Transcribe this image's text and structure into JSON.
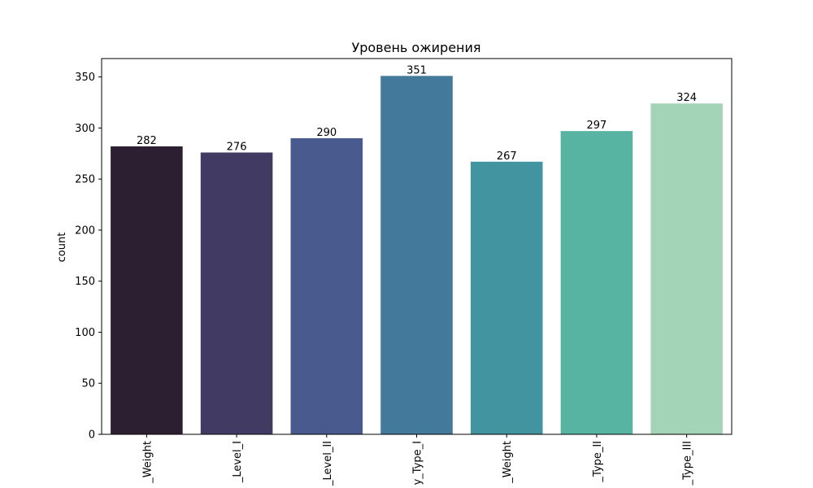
{
  "chart_data": {
    "type": "bar",
    "title": "Уровень ожирения",
    "xlabel": "",
    "ylabel": "count",
    "categories": [
      "_Weight",
      "_Level_I",
      "_Level_II",
      "y_Type_I",
      "_Weight",
      "_Type_II",
      "_Type_III"
    ],
    "values": [
      282,
      276,
      290,
      351,
      267,
      297,
      324
    ],
    "colors": [
      "#2b1f31",
      "#413b63",
      "#485a8e",
      "#43799a",
      "#4294a0",
      "#57b3a2",
      "#a3d4b8"
    ],
    "ylim": [
      0,
      368
    ],
    "yticks": [
      0,
      50,
      100,
      150,
      200,
      250,
      300,
      350
    ],
    "grid": false,
    "legend": "none"
  }
}
